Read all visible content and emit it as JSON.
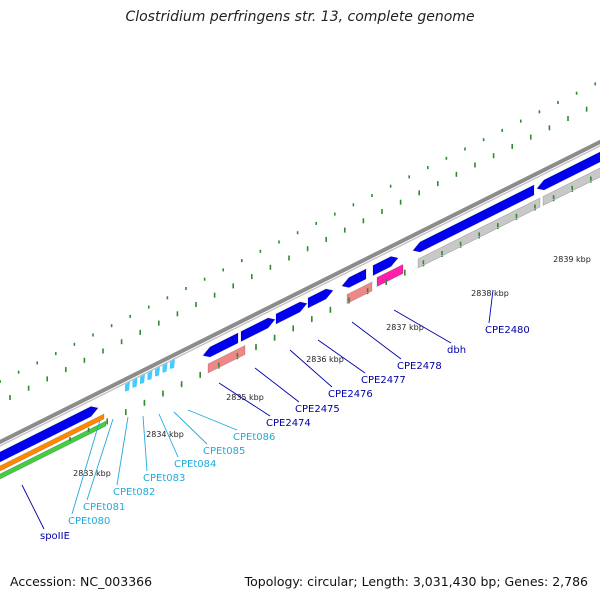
{
  "title": "Clostridium perfringens str. 13, complete genome",
  "footer": {
    "accession": "Accession: NC_003366",
    "summary": "Topology: circular; Length: 3,031,430 bp; Genes: 2,786"
  },
  "colors": {
    "backbone": "#8c8c8c",
    "gene_cds": "#0000ee",
    "gene_trna": "#44ccff",
    "rrna_pink": "#ee8888",
    "magenta": "#ff1fa8",
    "gray_feature": "#c8c8c8",
    "orange_feature": "#ff8800",
    "green_feature": "#44cc44",
    "tick": "#2e8b2e",
    "label_cds": "#0000aa",
    "label_trna": "#22aadd"
  },
  "tick_labels": [
    "2833 kbp",
    "2834 kbp",
    "2835 kbp",
    "2836 kbp",
    "2837 kbp",
    "2838 kbp",
    "2839 kbp"
  ],
  "gene_labels": [
    {
      "text": "spoIIE",
      "kind": "cds"
    },
    {
      "text": "CPEt080",
      "kind": "trna"
    },
    {
      "text": "CPEt081",
      "kind": "trna"
    },
    {
      "text": "CPEt082",
      "kind": "trna"
    },
    {
      "text": "CPEt083",
      "kind": "trna"
    },
    {
      "text": "CPEt084",
      "kind": "trna"
    },
    {
      "text": "CPEt085",
      "kind": "trna"
    },
    {
      "text": "CPEt086",
      "kind": "trna"
    },
    {
      "text": "CPE2474",
      "kind": "cds"
    },
    {
      "text": "CPE2475",
      "kind": "cds"
    },
    {
      "text": "CPE2476",
      "kind": "cds"
    },
    {
      "text": "CPE2477",
      "kind": "cds"
    },
    {
      "text": "CPE2478",
      "kind": "cds"
    },
    {
      "text": "dbh",
      "kind": "cds"
    },
    {
      "text": "CPE2480",
      "kind": "cds"
    }
  ]
}
